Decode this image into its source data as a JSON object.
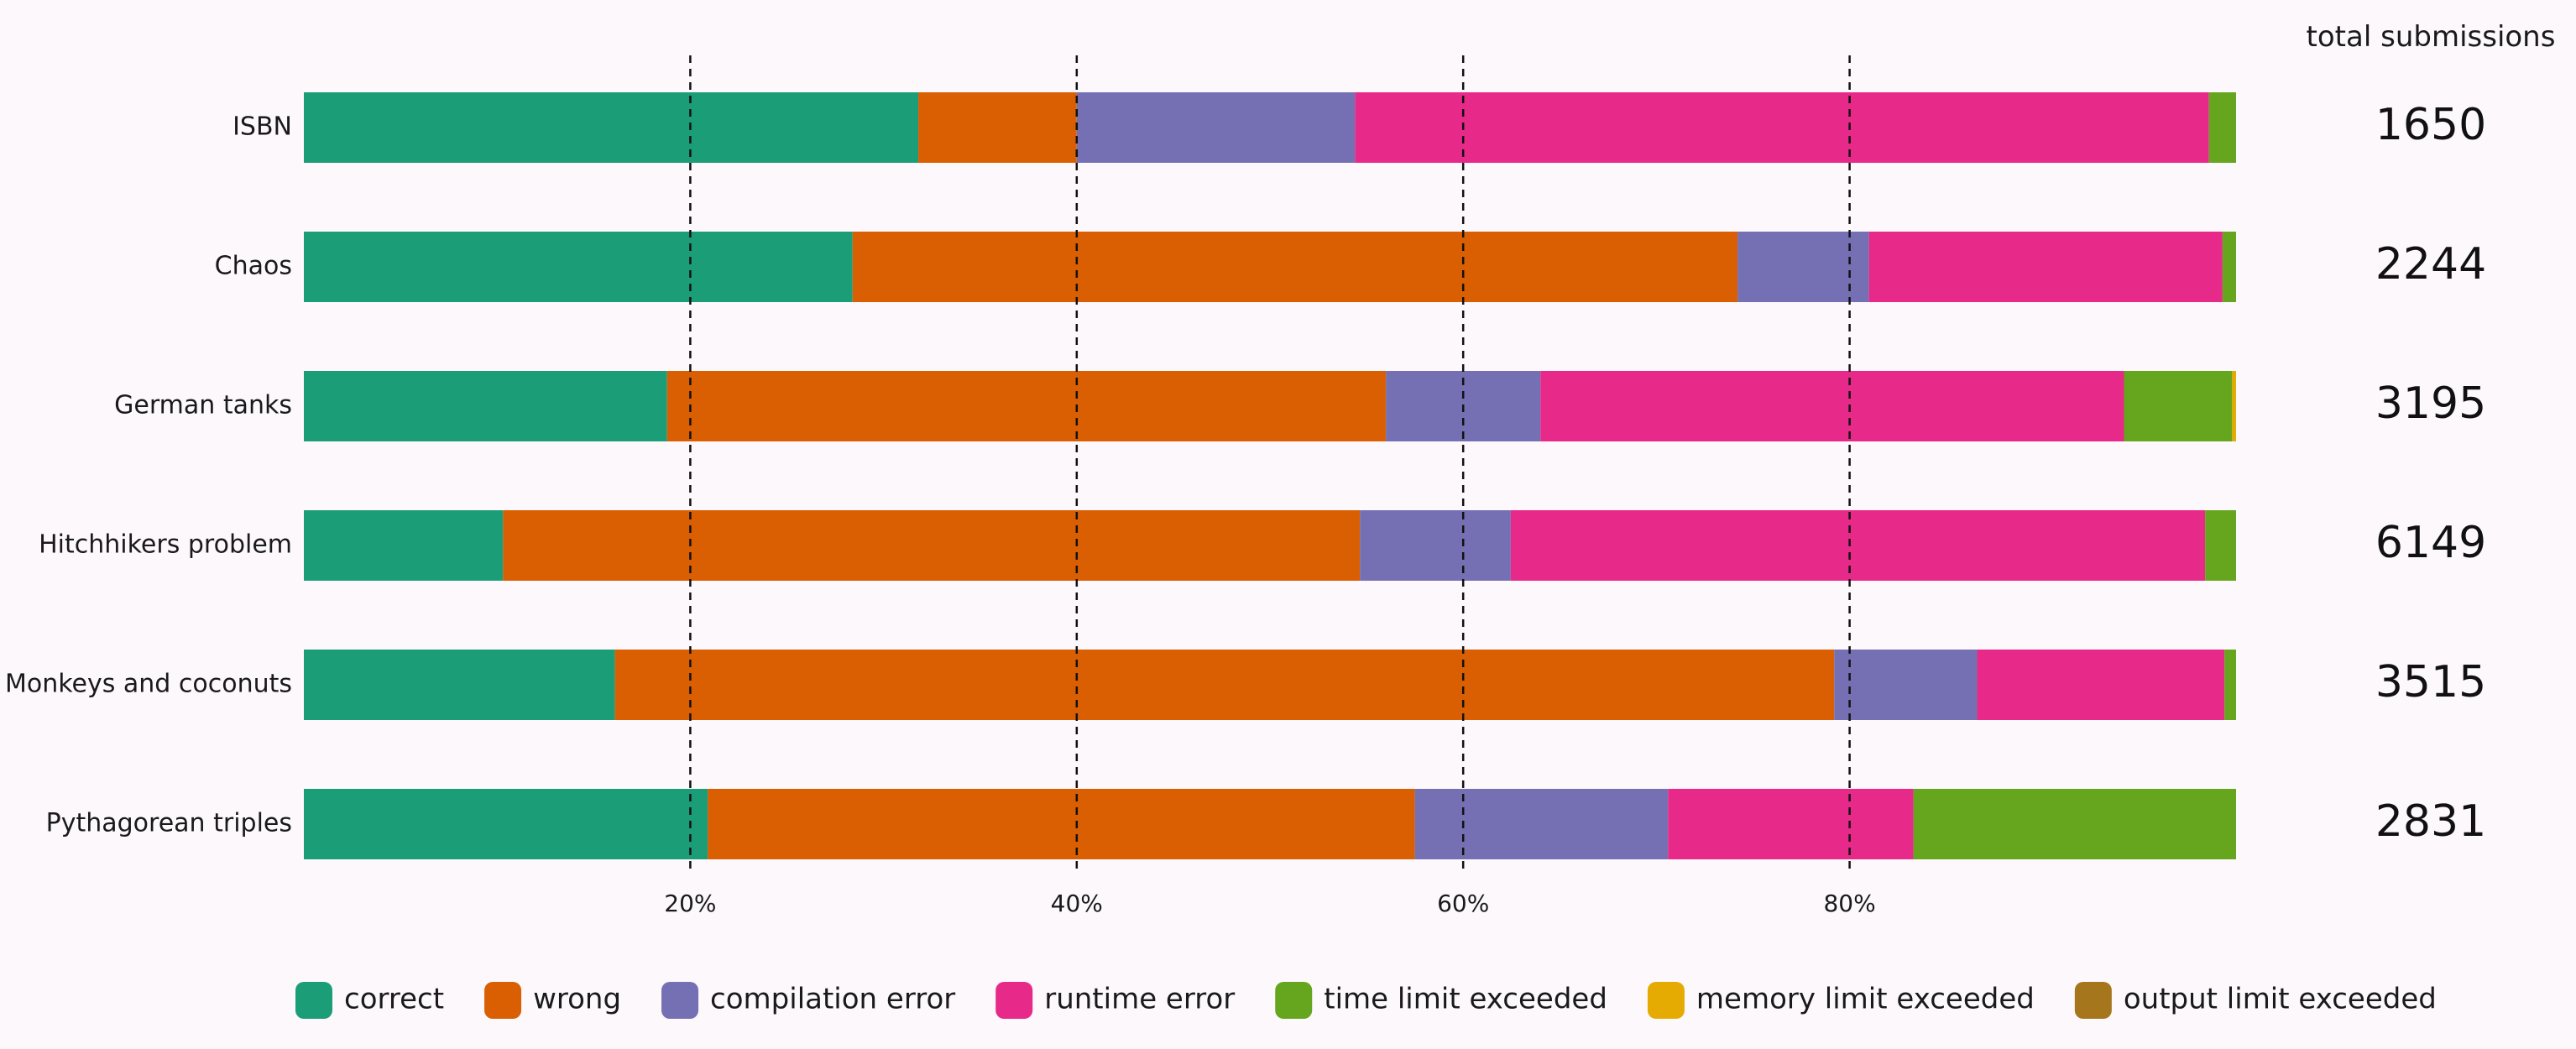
{
  "chart_data": {
    "type": "bar",
    "orientation": "horizontal",
    "stacked": true,
    "normalized": true,
    "categories": [
      "ISBN",
      "Chaos",
      "German tanks",
      "Hitchhikers problem",
      "Monkeys and coconuts",
      "Pythagorean triples"
    ],
    "series": [
      {
        "name": "correct",
        "color": "#1b9e77",
        "values": [
          31.8,
          28.4,
          18.8,
          10.3,
          16.1,
          20.9
        ]
      },
      {
        "name": "wrong",
        "color": "#d95f02",
        "values": [
          8.2,
          45.8,
          37.2,
          44.3,
          63.1,
          36.6
        ]
      },
      {
        "name": "compilation error",
        "color": "#7570b3",
        "values": [
          14.4,
          6.8,
          8.0,
          7.8,
          7.4,
          13.1
        ]
      },
      {
        "name": "runtime error",
        "color": "#e7298a",
        "values": [
          44.2,
          18.3,
          30.2,
          35.9,
          12.8,
          12.7
        ]
      },
      {
        "name": "time limit exceeded",
        "color": "#66a61e",
        "values": [
          1.4,
          0.7,
          5.6,
          1.6,
          0.6,
          16.7
        ]
      },
      {
        "name": "memory limit exceeded",
        "color": "#e6ab02",
        "values": [
          0.0,
          0.0,
          0.2,
          0.0,
          0.0,
          0.0
        ]
      },
      {
        "name": "output limit exceeded",
        "color": "#a6761d",
        "values": [
          0.0,
          0.0,
          0.0,
          0.0,
          0.0,
          0.0
        ]
      }
    ],
    "xlim": [
      0,
      100
    ],
    "x_ticks": [
      20,
      40,
      60,
      80
    ],
    "x_tick_labels": [
      "20%",
      "40%",
      "60%",
      "80%"
    ],
    "grid": "vertical dashed at ticks",
    "legend_position": "bottom",
    "totals_header": "total submissions",
    "totals": [
      "1650",
      "2244",
      "3195",
      "6149",
      "3515",
      "2831"
    ]
  }
}
